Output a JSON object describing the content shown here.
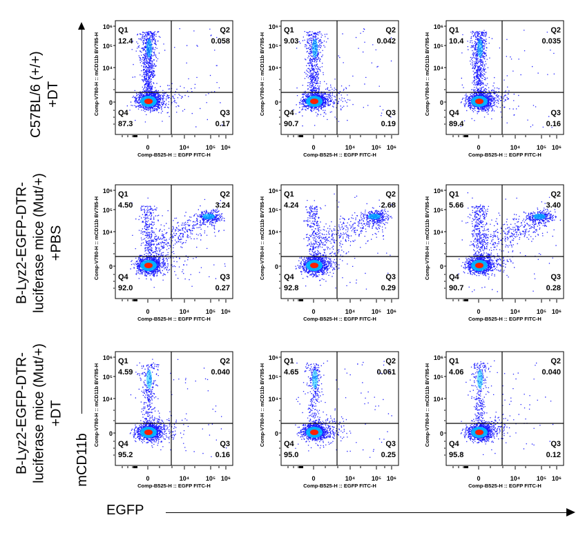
{
  "row_labels": [
    [
      "C57BL/6 (+/+)",
      "+DT"
    ],
    [
      "B-Lyz2-EGFP-DTR-",
      "luciferase mice (Mut/+)",
      "+PBS"
    ],
    [
      "B-Lyz2-EGFP-DTR-",
      "luciferase mice (Mut/+)",
      "+DT"
    ]
  ],
  "y_axis_title": "mCD11b",
  "x_axis_title": "EGFP",
  "panel_x_label": "Comp-B525-H :: EGFP FITC-H",
  "panel_y_label": "Comp-V780-H :: mCD11b BV785-H",
  "quadrant_names": [
    "Q1",
    "Q2",
    "Q3",
    "Q4"
  ],
  "chart_data": {
    "type": "scatter",
    "layout": "3x3 grid of flow cytometry dot plots with quadrant gates",
    "x_ticks": [
      "0",
      "10⁴",
      "10⁵",
      "10⁶"
    ],
    "y_ticks": [
      "0",
      "10⁴",
      "10⁵",
      "10⁶"
    ],
    "x_scale": "biexponential",
    "y_scale": "biexponential",
    "panels": [
      {
        "row": 0,
        "col": 0,
        "Q1": "12.4",
        "Q2": "0.058",
        "Q3": "0.17",
        "Q4": "87.3"
      },
      {
        "row": 0,
        "col": 1,
        "Q1": "9.03",
        "Q2": "0.042",
        "Q3": "0.19",
        "Q4": "90.7"
      },
      {
        "row": 0,
        "col": 2,
        "Q1": "10.4",
        "Q2": "0.035",
        "Q3": "0.16",
        "Q4": "89.4"
      },
      {
        "row": 1,
        "col": 0,
        "Q1": "4.50",
        "Q2": "3.24",
        "Q3": "0.27",
        "Q4": "92.0"
      },
      {
        "row": 1,
        "col": 1,
        "Q1": "4.24",
        "Q2": "2.68",
        "Q3": "0.29",
        "Q4": "92.8"
      },
      {
        "row": 1,
        "col": 2,
        "Q1": "5.66",
        "Q2": "3.40",
        "Q3": "0.28",
        "Q4": "90.7"
      },
      {
        "row": 2,
        "col": 0,
        "Q1": "4.59",
        "Q2": "0.040",
        "Q3": "0.16",
        "Q4": "95.2"
      },
      {
        "row": 2,
        "col": 1,
        "Q1": "4.65",
        "Q2": "0.061",
        "Q3": "0.25",
        "Q4": "95.0"
      },
      {
        "row": 2,
        "col": 2,
        "Q1": "4.06",
        "Q2": "0.040",
        "Q3": "0.12",
        "Q4": "95.8"
      }
    ],
    "colors": {
      "dots": "#1a1aff",
      "dense": "#00c8ff",
      "core": "#ff2000",
      "gate": "#000000"
    }
  }
}
